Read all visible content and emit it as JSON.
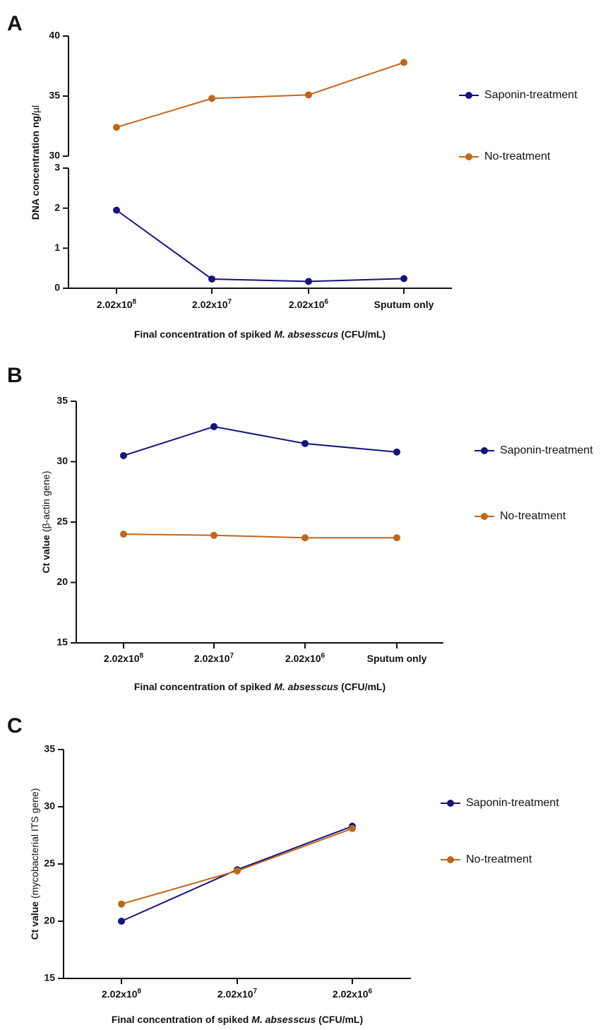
{
  "figure": {
    "colors": {
      "saponin": "#14147a",
      "no_treatment": "#c0661c",
      "axis": "#111111"
    }
  },
  "chart_data": [
    {
      "panel": "A",
      "type": "line",
      "categories": [
        "2.02x10^8",
        "2.02x10^7",
        "2.02x10^6",
        "Sputum only"
      ],
      "category_labels": [
        {
          "base": "2.02x10",
          "exp": "8"
        },
        {
          "base": "2.02x10",
          "exp": "7"
        },
        {
          "base": "2.02x10",
          "exp": "6"
        },
        {
          "base": "Sputum only",
          "exp": ""
        }
      ],
      "series": [
        {
          "name": "Saponin-treatment",
          "values": [
            1.95,
            0.23,
            0.17,
            0.24
          ]
        },
        {
          "name": "No-treatment",
          "values": [
            32.4,
            34.8,
            35.1,
            37.8
          ]
        }
      ],
      "ylabel": {
        "text": "DNA concentration ng/",
        "symbol": "µ",
        "tail": "l"
      },
      "xlabel": {
        "prefix": "Final concentration of spiked ",
        "italic": "M. absesscus",
        "suffix": " (CFU/mL)"
      },
      "y_axis": "broken",
      "lower_ylim": [
        0,
        3
      ],
      "upper_ylim": [
        30,
        40
      ],
      "lower_yticks": [
        0,
        1,
        2,
        3
      ],
      "upper_yticks": [
        30,
        35,
        40
      ],
      "legend_position": "right"
    },
    {
      "panel": "B",
      "type": "line",
      "categories": [
        "2.02x10^8",
        "2.02x10^7",
        "2.02x10^6",
        "Sputum only"
      ],
      "category_labels": [
        {
          "base": "2.02x10",
          "exp": "8"
        },
        {
          "base": "2.02x10",
          "exp": "7"
        },
        {
          "base": "2.02x10",
          "exp": "6"
        },
        {
          "base": "Sputum only",
          "exp": ""
        }
      ],
      "series": [
        {
          "name": "Saponin-treatment",
          "values": [
            30.5,
            32.9,
            31.5,
            30.8
          ]
        },
        {
          "name": "No-treatment",
          "values": [
            24.0,
            23.9,
            23.7,
            23.7
          ]
        }
      ],
      "ylabel": {
        "bold": "Ct value",
        "normal": " (β-actin gene)"
      },
      "xlabel": {
        "prefix": "Final concentration of spiked ",
        "italic": "M. absesscus",
        "suffix": " (CFU/mL)"
      },
      "ylim": [
        15,
        35
      ],
      "yticks": [
        15,
        20,
        25,
        30,
        35
      ],
      "legend_position": "right"
    },
    {
      "panel": "C",
      "type": "line",
      "categories": [
        "2.02x10^8",
        "2.02x10^7",
        "2.02x10^6"
      ],
      "category_labels": [
        {
          "base": "2.02x10",
          "exp": "8"
        },
        {
          "base": "2.02x10",
          "exp": "7"
        },
        {
          "base": "2.02x10",
          "exp": "6"
        }
      ],
      "series": [
        {
          "name": "Saponin-treatment",
          "values": [
            20.0,
            24.5,
            28.3
          ]
        },
        {
          "name": "No-treatment",
          "values": [
            21.5,
            24.4,
            28.1
          ]
        }
      ],
      "ylabel": {
        "bold": "Ct value",
        "normal": " (mycobacterial ITS gene)"
      },
      "xlabel": {
        "prefix": "Final concentration of spiked ",
        "italic": "M. absesscus",
        "suffix": " (CFU/mL)"
      },
      "ylim": [
        15,
        35
      ],
      "yticks": [
        15,
        20,
        25,
        30,
        35
      ],
      "legend_position": "right"
    }
  ]
}
